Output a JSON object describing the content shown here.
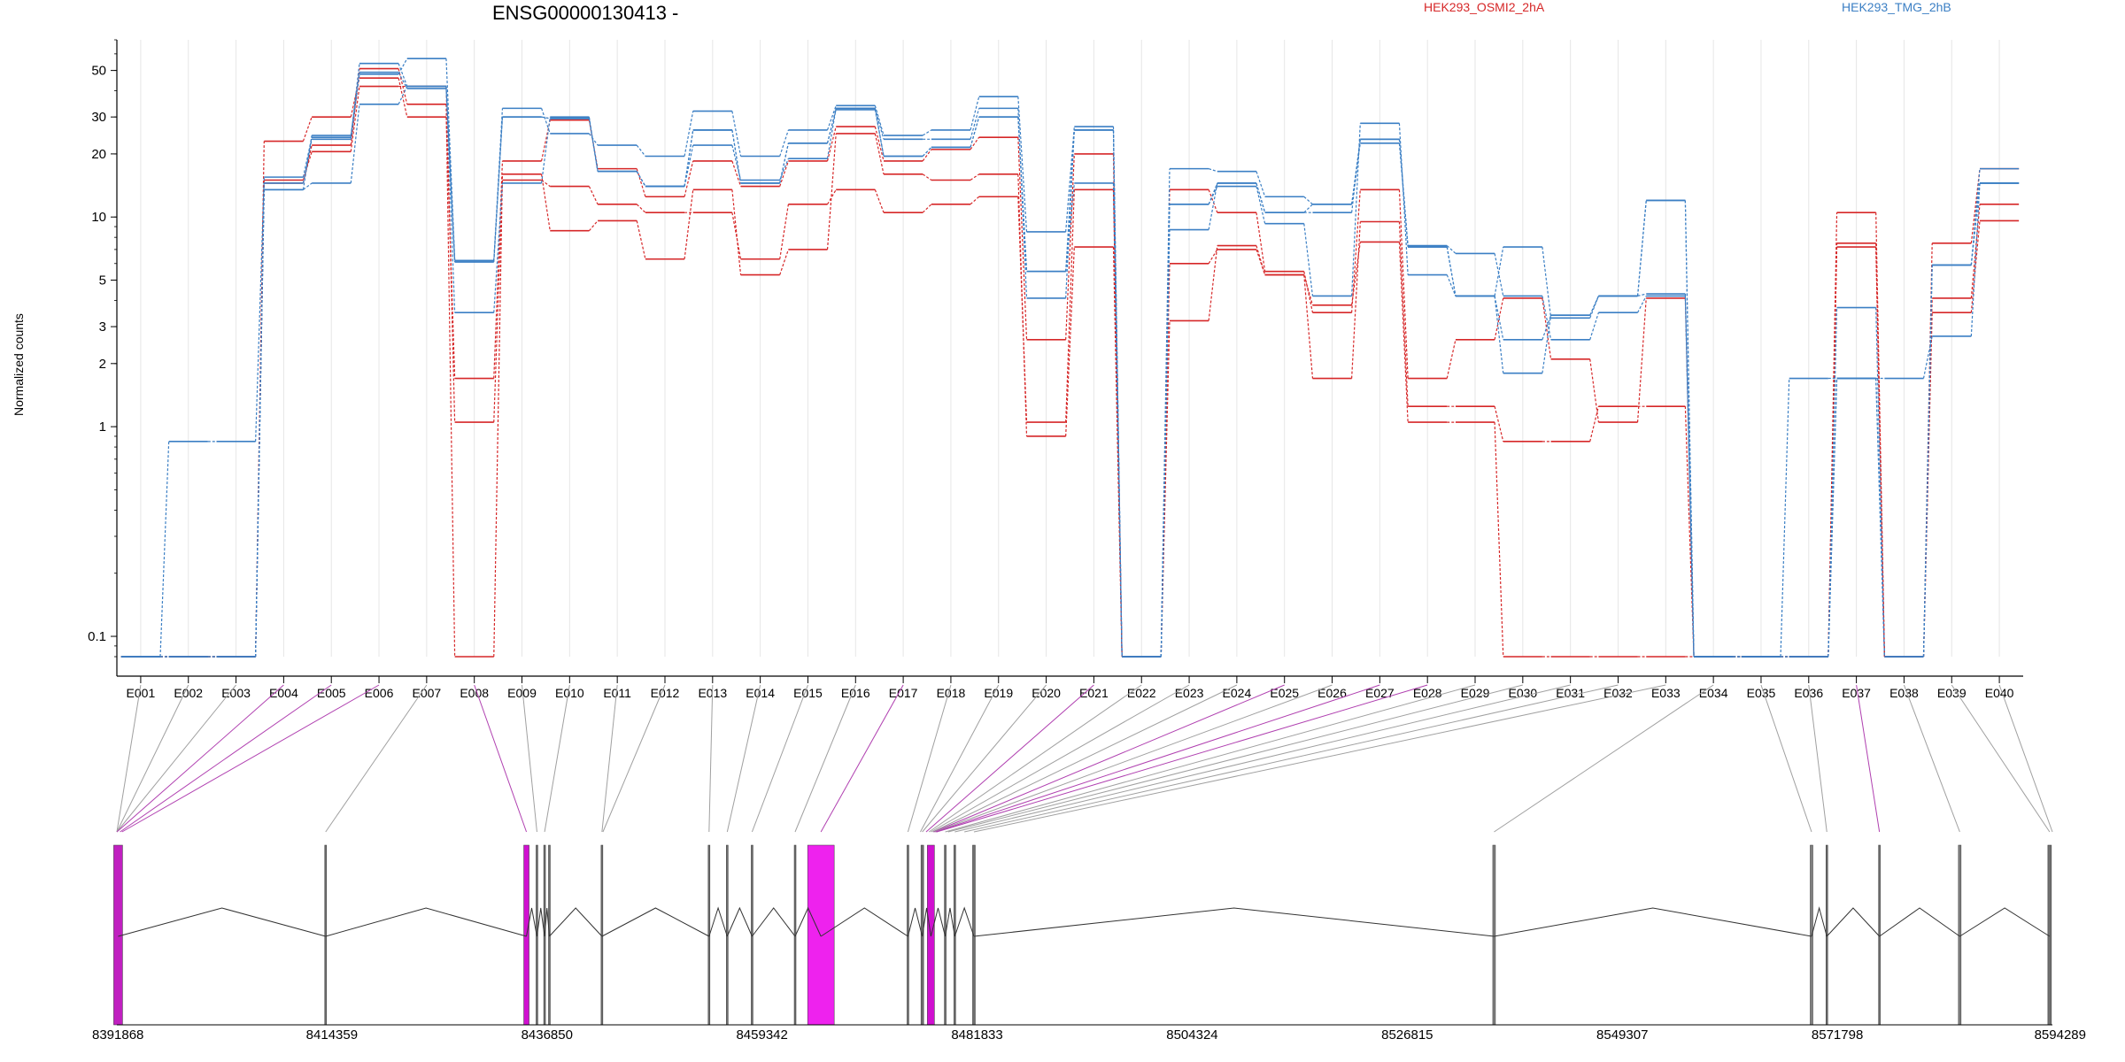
{
  "chart_data": {
    "type": "line",
    "title": "ENSG00000130413 -",
    "ylabel": "Normalized counts",
    "xlabel": "",
    "yscale": "log",
    "yticks": [
      0.1,
      1,
      2,
      3,
      5,
      10,
      20,
      30,
      50
    ],
    "ylim": [
      0.08,
      70
    ],
    "legend": [
      {
        "label": "HEK293_OSMI2_2hA",
        "color": "#d62728"
      },
      {
        "label": "HEK293_TMG_2hB",
        "color": "#3b7fc4"
      }
    ],
    "categories": [
      "E001",
      "E002",
      "E003",
      "E004",
      "E005",
      "E006",
      "E007",
      "E008",
      "E009",
      "E010",
      "E011",
      "E012",
      "E013",
      "E014",
      "E015",
      "E016",
      "E017",
      "E018",
      "E019",
      "E020",
      "E021",
      "E022",
      "E023",
      "E024",
      "E025",
      "E026",
      "E027",
      "E028",
      "E029",
      "E030",
      "E031",
      "E032",
      "E033",
      "E034",
      "E035",
      "E036",
      "E037",
      "E038",
      "E039",
      "E040"
    ],
    "series": [
      {
        "color": "#d62728",
        "values": [
          0.08,
          0.08,
          0.08,
          23,
          30,
          46,
          30,
          1.7,
          18.5,
          29,
          17,
          12.5,
          18.5,
          14,
          18.5,
          27,
          18.5,
          21,
          24,
          2.6,
          20,
          0.08,
          13.5,
          10.5,
          5.5,
          3.5,
          13.5,
          1.7,
          2.6,
          4.1,
          2.1,
          1.05,
          4.1,
          0.08,
          0.08,
          0.08,
          10.5,
          0.08,
          7.5,
          17
        ]
      },
      {
        "color": "#d62728",
        "values": [
          0.08,
          0.08,
          0.08,
          15,
          20.5,
          42,
          42,
          1.05,
          15,
          14,
          11.5,
          10.5,
          10.5,
          6.3,
          11.5,
          13.5,
          10.5,
          11.5,
          12.5,
          1.05,
          13.5,
          0.08,
          6,
          7,
          5.3,
          1.7,
          9.5,
          1.25,
          1.25,
          0.85,
          0.85,
          1.25,
          1.25,
          0.08,
          0.08,
          0.08,
          7.5,
          0.08,
          4.1,
          11.5
        ]
      },
      {
        "color": "#d62728",
        "values": [
          0.08,
          0.08,
          0.08,
          14.5,
          22,
          51,
          34.5,
          0.08,
          16,
          8.6,
          9.6,
          6.3,
          13.5,
          5.3,
          7,
          25,
          16,
          15,
          16,
          0.9,
          7.2,
          0.08,
          3.2,
          7.3,
          5.3,
          3.8,
          7.6,
          1.05,
          1.05,
          0.08,
          0.08,
          0.08,
          0.08,
          0.08,
          0.08,
          0.08,
          7.2,
          0.08,
          3.5,
          9.6
        ]
      },
      {
        "color": "#3b7fc4",
        "values": [
          0.08,
          0.85,
          0.85,
          15.5,
          24,
          54,
          42,
          3.5,
          14.5,
          30,
          16.5,
          14,
          22,
          15,
          19,
          33,
          23.5,
          23.5,
          33,
          4.1,
          26,
          0.08,
          17,
          16.5,
          12.5,
          11.5,
          22.5,
          7.3,
          6.7,
          4.2,
          2.6,
          3.5,
          4.2,
          0.08,
          0.08,
          1.7,
          1.7,
          1.7,
          2.7,
          14.5
        ]
      },
      {
        "color": "#3b7fc4",
        "values": [
          0.08,
          0.08,
          0.08,
          13.5,
          14.5,
          34.5,
          42,
          6.2,
          33,
          25,
          22,
          19.5,
          32,
          19.5,
          26,
          34,
          24.5,
          26,
          37.5,
          8.5,
          27,
          0.08,
          11.5,
          14,
          9.3,
          4.2,
          28,
          5.3,
          4.2,
          1.8,
          3.4,
          4.2,
          12,
          0.08,
          0.08,
          0.08,
          3.7,
          0.08,
          5.9,
          17
        ]
      },
      {
        "color": "#3b7fc4",
        "values": [
          0.08,
          0.08,
          0.08,
          13.5,
          24.5,
          49,
          41,
          6.1,
          30,
          29.5,
          16.5,
          14,
          26,
          14.5,
          22.5,
          33,
          19.5,
          21.5,
          30,
          5.5,
          14.5,
          0.08,
          8.7,
          14.5,
          10.5,
          10.5,
          23.5,
          7.2,
          4.2,
          7.2,
          3.3,
          4.2,
          4.3,
          0.08,
          0.08,
          0.08,
          1.7,
          0.08,
          5.9,
          14.5
        ]
      },
      {
        "color": "#3b7fc4",
        "values": [
          0.08,
          0.08,
          0.08,
          14.5,
          23.5,
          48,
          57,
          6.2,
          30,
          29.5,
          16.5,
          14,
          26,
          14.5,
          22.5,
          32.5,
          19.5,
          21.5,
          30,
          5.5,
          26,
          0.08,
          11.5,
          14.5,
          10.5,
          11.5,
          23.5,
          7.2,
          4.2,
          2.6,
          3.4,
          4.2,
          12,
          0.08,
          0.08,
          0.08,
          1.7,
          0.08,
          5.9,
          14.5
        ]
      }
    ],
    "genome_track": {
      "coordinate_ticks": [
        8391868,
        8414359,
        8436850,
        8459342,
        8481833,
        8504324,
        8526815,
        8549307,
        8571798,
        8594289
      ],
      "exon_lines": [
        {
          "pos": 8392000,
          "w": 10,
          "color": "#c020c0"
        },
        {
          "pos": 8413700,
          "w": 2,
          "color": "#707070"
        },
        {
          "pos": 8434700,
          "w": 6,
          "color": "#d010d0"
        },
        {
          "pos": 8435800,
          "w": 2,
          "color": "#707070"
        },
        {
          "pos": 8436600,
          "w": 2,
          "color": "#707070"
        },
        {
          "pos": 8437100,
          "w": 2,
          "color": "#707070"
        },
        {
          "pos": 8442600,
          "w": 2,
          "color": "#707070"
        },
        {
          "pos": 8453800,
          "w": 2,
          "color": "#707070"
        },
        {
          "pos": 8455700,
          "w": 2,
          "color": "#707070"
        },
        {
          "pos": 8458300,
          "w": 2,
          "color": "#707070"
        },
        {
          "pos": 8462800,
          "w": 2,
          "color": "#707070"
        },
        {
          "pos": 8465500,
          "w": 30,
          "color": "#ee22ee"
        },
        {
          "pos": 8474600,
          "w": 2,
          "color": "#707070"
        },
        {
          "pos": 8476100,
          "w": 3,
          "color": "#707070"
        },
        {
          "pos": 8477000,
          "w": 8,
          "color": "#d010d0"
        },
        {
          "pos": 8478500,
          "w": 2,
          "color": "#707070"
        },
        {
          "pos": 8479500,
          "w": 2,
          "color": "#707070"
        },
        {
          "pos": 8481500,
          "w": 3,
          "color": "#707070"
        },
        {
          "pos": 8535900,
          "w": 3,
          "color": "#808080"
        },
        {
          "pos": 8569100,
          "w": 3,
          "color": "#808080"
        },
        {
          "pos": 8570700,
          "w": 2,
          "color": "#707070"
        },
        {
          "pos": 8576200,
          "w": 2,
          "color": "#707070"
        },
        {
          "pos": 8584600,
          "w": 3,
          "color": "#808080"
        },
        {
          "pos": 8594000,
          "w": 4,
          "color": "#707070"
        }
      ],
      "mapping": [
        {
          "exon": 0,
          "pos": 8391868,
          "color": "#a0a0a0"
        },
        {
          "exon": 1,
          "pos": 8391868,
          "color": "#a0a0a0"
        },
        {
          "exon": 2,
          "pos": 8391868,
          "color": "#a0a0a0"
        },
        {
          "exon": 3,
          "pos": 8391868,
          "color": "#b040b0"
        },
        {
          "exon": 4,
          "pos": 8392200,
          "color": "#b040b0"
        },
        {
          "exon": 5,
          "pos": 8392400,
          "color": "#b040b0"
        },
        {
          "exon": 6,
          "pos": 8413700,
          "color": "#a0a0a0"
        },
        {
          "exon": 7,
          "pos": 8434700,
          "color": "#b040b0"
        },
        {
          "exon": 8,
          "pos": 8435800,
          "color": "#a0a0a0"
        },
        {
          "exon": 9,
          "pos": 8436600,
          "color": "#a0a0a0"
        },
        {
          "exon": 10,
          "pos": 8442600,
          "color": "#a0a0a0"
        },
        {
          "exon": 11,
          "pos": 8442700,
          "color": "#a0a0a0"
        },
        {
          "exon": 12,
          "pos": 8453800,
          "color": "#a0a0a0"
        },
        {
          "exon": 13,
          "pos": 8455700,
          "color": "#a0a0a0"
        },
        {
          "exon": 14,
          "pos": 8458300,
          "color": "#a0a0a0"
        },
        {
          "exon": 15,
          "pos": 8462800,
          "color": "#a0a0a0"
        },
        {
          "exon": 16,
          "pos": 8465500,
          "color": "#b040b0"
        },
        {
          "exon": 17,
          "pos": 8474600,
          "color": "#a0a0a0"
        },
        {
          "exon": 18,
          "pos": 8475900,
          "color": "#a0a0a0"
        },
        {
          "exon": 19,
          "pos": 8476100,
          "color": "#a0a0a0"
        },
        {
          "exon": 20,
          "pos": 8476500,
          "color": "#b040b0"
        },
        {
          "exon": 21,
          "pos": 8476800,
          "color": "#a0a0a0"
        },
        {
          "exon": 22,
          "pos": 8477000,
          "color": "#a0a0a0"
        },
        {
          "exon": 23,
          "pos": 8477200,
          "color": "#a0a0a0"
        },
        {
          "exon": 24,
          "pos": 8477300,
          "color": "#b040b0"
        },
        {
          "exon": 25,
          "pos": 8477400,
          "color": "#a0a0a0"
        },
        {
          "exon": 26,
          "pos": 8477500,
          "color": "#b040b0"
        },
        {
          "exon": 27,
          "pos": 8477600,
          "color": "#b040b0"
        },
        {
          "exon": 28,
          "pos": 8478500,
          "color": "#a0a0a0"
        },
        {
          "exon": 29,
          "pos": 8478800,
          "color": "#a0a0a0"
        },
        {
          "exon": 30,
          "pos": 8479500,
          "color": "#a0a0a0"
        },
        {
          "exon": 31,
          "pos": 8480500,
          "color": "#a0a0a0"
        },
        {
          "exon": 32,
          "pos": 8481500,
          "color": "#a0a0a0"
        },
        {
          "exon": 33,
          "pos": 8535900,
          "color": "#a0a0a0"
        },
        {
          "exon": 34,
          "pos": 8569100,
          "color": "#a0a0a0"
        },
        {
          "exon": 35,
          "pos": 8570700,
          "color": "#a0a0a0"
        },
        {
          "exon": 36,
          "pos": 8576200,
          "color": "#b040b0"
        },
        {
          "exon": 37,
          "pos": 8584600,
          "color": "#a0a0a0"
        },
        {
          "exon": 38,
          "pos": 8594000,
          "color": "#a0a0a0"
        },
        {
          "exon": 39,
          "pos": 8594289,
          "color": "#a0a0a0"
        }
      ]
    }
  }
}
